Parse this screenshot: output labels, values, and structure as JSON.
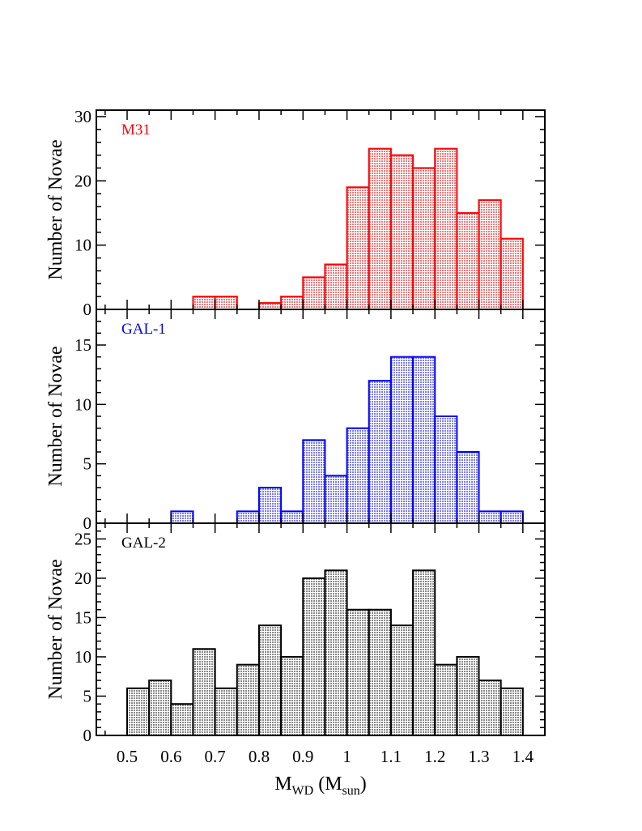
{
  "chart_data": [
    {
      "type": "bar",
      "name": "M31",
      "label": "M31",
      "color": "#ff0000",
      "fill_color": "#ef7b7b",
      "ylabel": "Number of Novae",
      "ylim": [
        0,
        31
      ],
      "yticks": [
        "0",
        "10",
        "20",
        "30"
      ],
      "ytick_values": [
        0,
        10,
        20,
        30
      ],
      "y_minor_step": 2,
      "bin_edges": [
        0.5,
        0.55,
        0.6,
        0.65,
        0.7,
        0.75,
        0.8,
        0.85,
        0.9,
        0.95,
        1.0,
        1.05,
        1.1,
        1.15,
        1.2,
        1.25,
        1.3,
        1.35,
        1.4
      ],
      "values": [
        0,
        0,
        0,
        2,
        2,
        0,
        1,
        2,
        5,
        7,
        19,
        25,
        24,
        22,
        25,
        15,
        17,
        11
      ]
    },
    {
      "type": "bar",
      "name": "GAL-1",
      "label": "GAL-1",
      "color": "#0000ff",
      "fill_color": "#7f7fe8",
      "ylabel": "Number of Novae",
      "ylim": [
        0,
        18
      ],
      "yticks": [
        "0",
        "5",
        "10",
        "15"
      ],
      "ytick_values": [
        0,
        5,
        10,
        15
      ],
      "y_minor_step": 1,
      "bin_edges": [
        0.5,
        0.55,
        0.6,
        0.65,
        0.7,
        0.75,
        0.8,
        0.85,
        0.9,
        0.95,
        1.0,
        1.05,
        1.1,
        1.15,
        1.2,
        1.25,
        1.3,
        1.35,
        1.4
      ],
      "values": [
        0,
        0,
        1,
        0,
        0,
        1,
        3,
        1,
        7,
        4,
        8,
        12,
        14,
        14,
        9,
        6,
        1,
        1
      ]
    },
    {
      "type": "bar",
      "name": "GAL-2",
      "label": "GAL-2",
      "color": "#000000",
      "fill_color": "#8a8a8a",
      "ylabel": "Number of Novae",
      "ylim": [
        0,
        27
      ],
      "yticks": [
        "0",
        "5",
        "10",
        "15",
        "20",
        "25"
      ],
      "ytick_values": [
        0,
        5,
        10,
        15,
        20,
        25
      ],
      "y_minor_step": 1,
      "bin_edges": [
        0.5,
        0.55,
        0.6,
        0.65,
        0.7,
        0.75,
        0.8,
        0.85,
        0.9,
        0.95,
        1.0,
        1.05,
        1.1,
        1.15,
        1.2,
        1.25,
        1.3,
        1.35,
        1.4
      ],
      "values": [
        6,
        7,
        4,
        11,
        6,
        9,
        14,
        10,
        20,
        21,
        16,
        16,
        14,
        21,
        9,
        10,
        7,
        6
      ]
    }
  ],
  "x_axis": {
    "xlim": [
      0.43,
      1.45
    ],
    "ticks": [
      "0.5",
      "0.6",
      "0.7",
      "0.8",
      "0.9",
      "1",
      "1.1",
      "1.2",
      "1.3",
      "1.4"
    ],
    "tick_values": [
      0.5,
      0.6,
      0.7,
      0.8,
      0.9,
      1.0,
      1.1,
      1.2,
      1.3,
      1.4
    ],
    "minor_step": 0.05,
    "label_main": "M",
    "label_sub": "WD",
    "label_mid": " (M",
    "label_sub2": "sun",
    "label_end": ")"
  }
}
